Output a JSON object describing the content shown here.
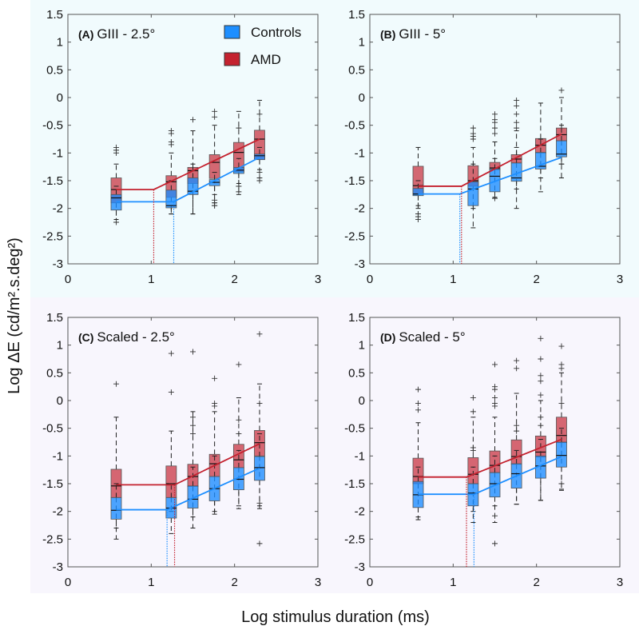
{
  "figure": {
    "ylabel": "Log ΔE (cd/m².s.deg²)",
    "xlabel": "Log stimulus duration (ms)",
    "legend": [
      {
        "name": "Controls",
        "color": "#1e8fff"
      },
      {
        "name": "AMD",
        "color": "#c4222f"
      }
    ],
    "colors": {
      "controls_line": "#1e8fff",
      "amd_line": "#c4222f",
      "top_band": "#f1fbfd",
      "bottom_band": "#f8f6fd"
    }
  },
  "chart_data": [
    {
      "type": "box",
      "panel": "(A)",
      "title": "GIII - 2.5°",
      "xlim": [
        0,
        3
      ],
      "ylim": [
        -3,
        1.5
      ],
      "xticks": [
        0,
        1,
        2,
        3
      ],
      "yticks": [
        1.5,
        1,
        0.5,
        0,
        -0.5,
        -1,
        -1.5,
        -2,
        -2.5,
        -3
      ],
      "ytick_labels": [
        "1.5",
        "1",
        "0.5",
        "0",
        "-0.5",
        "-1",
        "-1.5",
        "-2",
        "-2.5",
        "-3"
      ],
      "x": [
        0.58,
        1.24,
        1.5,
        1.76,
        2.05,
        2.3
      ],
      "box_format": [
        "whisker_low",
        "q1",
        "median",
        "q3",
        "whisker_high",
        "outliers"
      ],
      "series": [
        {
          "name": "Controls",
          "boxes": [
            [
              -2.2,
              -2.03,
              -1.81,
              -1.75,
              -1.6,
              [
                -2.25
              ]
            ],
            [
              -2.1,
              -1.99,
              -1.95,
              -1.67,
              -1.5,
              []
            ],
            [
              -2.1,
              -1.75,
              -1.69,
              -1.45,
              -1.2,
              []
            ],
            [
              -1.75,
              -1.59,
              -1.53,
              -1.48,
              -1.35,
              [
                -1.9,
                -1.95
              ]
            ],
            [
              -1.55,
              -1.37,
              -1.31,
              -1.26,
              -1.1,
              [
                -1.7,
                -1.6
              ]
            ],
            [
              -1.3,
              -1.12,
              -1.05,
              -1.02,
              -0.9,
              [
                -1.45,
                -1.5
              ]
            ]
          ],
          "fit": {
            "plateau": -1.88,
            "knee": 1.27,
            "end_x": 2.3,
            "end_y": -1.08
          }
        },
        {
          "name": "AMD",
          "boxes": [
            [
              -2.2,
              -1.9,
              -1.66,
              -1.45,
              -1.2,
              [
                -0.9,
                -0.95,
                -1.0
              ]
            ],
            [
              -2.1,
              -1.8,
              -1.52,
              -1.41,
              -1.0,
              [
                -0.6,
                -0.65,
                -0.8,
                -0.85
              ]
            ],
            [
              -2.1,
              -1.55,
              -1.32,
              -1.26,
              -0.6,
              [
                -0.4
              ]
            ],
            [
              -1.9,
              -1.46,
              -1.17,
              -1.03,
              -0.5,
              [
                -0.25,
                -0.35,
                -1.85,
                -1.95
              ]
            ],
            [
              -1.75,
              -1.34,
              -0.99,
              -0.81,
              -0.25,
              [
                -0.55,
                -1.6
              ]
            ],
            [
              -1.45,
              -1.12,
              -0.75,
              -0.59,
              -0.05,
              [
                -0.3,
                -1.35
              ]
            ]
          ],
          "fit": {
            "plateau": -1.66,
            "knee": 1.03,
            "end_x": 2.3,
            "end_y": -0.75
          }
        }
      ]
    },
    {
      "type": "box",
      "panel": "(B)",
      "title": "GIII - 5°",
      "xlim": [
        0,
        3
      ],
      "ylim": [
        -3,
        1.5
      ],
      "xticks": [
        0,
        1,
        2,
        3
      ],
      "yticks": [
        1.5,
        1,
        0.5,
        0,
        -0.5,
        -1,
        -1.5,
        -2,
        -2.5,
        -3
      ],
      "ytick_labels": [
        "1.5",
        "1",
        "0.5",
        "0",
        "-0.5",
        "-1",
        "-1.5",
        "-2",
        "-2.5",
        "-3"
      ],
      "x": [
        0.58,
        1.24,
        1.5,
        1.76,
        2.05,
        2.3
      ],
      "box_format": [
        "whisker_low",
        "q1",
        "median",
        "q3",
        "whisker_high",
        "outliers"
      ],
      "series": [
        {
          "name": "Controls",
          "boxes": [
            [
              -2.0,
              -1.77,
              -1.74,
              -1.64,
              -1.5,
              [
                -2.1,
                -2.15,
                -2.2
              ]
            ],
            [
              -2.35,
              -1.95,
              -1.65,
              -1.52,
              -1.2,
              []
            ],
            [
              -1.8,
              -1.7,
              -1.42,
              -1.29,
              -1.1,
              [
                -1.82
              ]
            ],
            [
              -2.0,
              -1.51,
              -1.45,
              -1.18,
              -0.9,
              []
            ],
            [
              -1.7,
              -1.29,
              -1.24,
              -0.99,
              -0.75,
              []
            ],
            [
              -1.45,
              -1.07,
              -1.02,
              -0.78,
              -0.5,
              [
                -1.2
              ]
            ]
          ],
          "fit": {
            "plateau": -1.74,
            "knee": 1.08,
            "end_x": 2.3,
            "end_y": -1.08
          }
        },
        {
          "name": "AMD",
          "boxes": [
            [
              -1.95,
              -1.75,
              -1.59,
              -1.24,
              -0.9,
              [
                -2.1,
                -2.15
              ]
            ],
            [
              -2.0,
              -1.6,
              -1.5,
              -1.23,
              -0.9,
              [
                -0.55,
                -0.65,
                -0.7,
                -0.75
              ]
            ],
            [
              -1.8,
              -1.3,
              -1.27,
              -1.17,
              -0.8,
              [
                -0.3,
                -0.4,
                -0.45,
                -0.55,
                -0.65
              ]
            ],
            [
              -1.65,
              -1.18,
              -1.11,
              -1.03,
              -0.6,
              [
                -0.05,
                -0.15,
                -0.3,
                -0.45,
                -0.55
              ]
            ],
            [
              -1.45,
              -1.0,
              -0.86,
              -0.74,
              -0.1,
              []
            ],
            [
              -1.2,
              -0.78,
              -0.67,
              -0.55,
              0.0,
              [
                0.13
              ]
            ]
          ],
          "fit": {
            "plateau": -1.6,
            "knee": 1.1,
            "end_x": 2.3,
            "end_y": -0.66
          }
        }
      ]
    },
    {
      "type": "box",
      "panel": "(C)",
      "title": "Scaled - 2.5°",
      "xlim": [
        0,
        3
      ],
      "ylim": [
        -3,
        1.5
      ],
      "xticks": [
        0,
        1,
        2,
        3
      ],
      "yticks": [
        1.5,
        1,
        0.5,
        0,
        -0.5,
        -1,
        -1.5,
        -2,
        -2.5,
        -3
      ],
      "ytick_labels": [
        "1.5",
        "1",
        "0.5",
        "0",
        "-0.5",
        "-1",
        "-1.5",
        "-2",
        "-2.5",
        "-3"
      ],
      "x": [
        0.58,
        1.24,
        1.5,
        1.76,
        2.05,
        2.3
      ],
      "box_format": [
        "whisker_low",
        "q1",
        "median",
        "q3",
        "whisker_high",
        "outliers"
      ],
      "series": [
        {
          "name": "Controls",
          "boxes": [
            [
              -2.5,
              -2.14,
              -1.98,
              -1.75,
              -1.5,
              []
            ],
            [
              -2.4,
              -2.12,
              -1.94,
              -1.75,
              -1.5,
              []
            ],
            [
              -2.3,
              -1.94,
              -1.78,
              -1.54,
              -1.2,
              []
            ],
            [
              -2.05,
              -1.81,
              -1.59,
              -1.37,
              -1.0,
              []
            ],
            [
              -1.9,
              -1.61,
              -1.42,
              -1.21,
              -0.9,
              []
            ],
            [
              -1.9,
              -1.44,
              -1.21,
              -1.01,
              -0.6,
              [
                -2.58
              ]
            ]
          ],
          "fit": {
            "plateau": -1.97,
            "knee": 1.19,
            "end_x": 2.3,
            "end_y": -1.22
          }
        },
        {
          "name": "AMD",
          "boxes": [
            [
              -2.3,
              -1.75,
              -1.54,
              -1.24,
              -0.3,
              [
                0.3
              ]
            ],
            [
              -2.0,
              -1.75,
              -1.5,
              -1.18,
              -0.55,
              [
                0.85,
                0.15
              ]
            ],
            [
              -2.1,
              -1.55,
              -1.37,
              -1.15,
              -0.2,
              [
                0.88,
                -0.3,
                -0.45,
                -0.6
              ]
            ],
            [
              -2.0,
              -1.37,
              -1.14,
              -0.97,
              -0.2,
              [
                0.4,
                -0.05,
                -0.1
              ]
            ],
            [
              -1.95,
              -1.21,
              -1.07,
              -0.79,
              0.05,
              [
                0.65,
                -0.35,
                -0.6
              ]
            ],
            [
              -1.95,
              -1.0,
              -0.76,
              -0.54,
              0.3,
              [
                1.2,
                -0.05,
                -1.85
              ]
            ]
          ],
          "fit": {
            "plateau": -1.52,
            "knee": 1.28,
            "end_x": 2.3,
            "end_y": -0.78
          }
        }
      ]
    },
    {
      "type": "box",
      "panel": "(D)",
      "title": "Scaled - 5°",
      "xlim": [
        0,
        3
      ],
      "ylim": [
        -3,
        1.5
      ],
      "xticks": [
        0,
        1,
        2,
        3
      ],
      "yticks": [
        1.5,
        1,
        0.5,
        0,
        -0.5,
        -1,
        -1.5,
        -2,
        -2.5,
        -3
      ],
      "ytick_labels": [
        "1.5",
        "1",
        "0.5",
        "0",
        "-0.5",
        "-1",
        "-1.5",
        "-2",
        "-2.5",
        "-3"
      ],
      "x": [
        0.58,
        1.24,
        1.5,
        1.76,
        2.05,
        2.3
      ],
      "box_format": [
        "whisker_low",
        "q1",
        "median",
        "q3",
        "whisker_high",
        "outliers"
      ],
      "series": [
        {
          "name": "Controls",
          "boxes": [
            [
              -2.15,
              -1.93,
              -1.7,
              -1.46,
              -1.2,
              []
            ],
            [
              -2.2,
              -1.9,
              -1.67,
              -1.5,
              -1.2,
              []
            ],
            [
              -2.2,
              -1.74,
              -1.5,
              -1.3,
              -1.0,
              [
                -2.08,
                -2.58
              ]
            ],
            [
              -1.87,
              -1.58,
              -1.32,
              -1.14,
              -0.9,
              []
            ],
            [
              -1.8,
              -1.4,
              -1.18,
              -1.0,
              -0.7,
              []
            ],
            [
              -1.62,
              -1.2,
              -0.99,
              -0.75,
              -0.5,
              [
                -1.5
              ]
            ]
          ],
          "fit": {
            "plateau": -1.69,
            "knee": 1.25,
            "end_x": 2.3,
            "end_y": -1.01
          }
        },
        {
          "name": "AMD",
          "boxes": [
            [
              -2.1,
              -1.5,
              -1.37,
              -1.04,
              -0.4,
              [
                0.2,
                -0.05,
                -0.17
              ]
            ],
            [
              -2.0,
              -1.5,
              -1.33,
              -1.03,
              -0.3,
              [
                0.05,
                -0.2,
                -0.85,
                -0.9
              ]
            ],
            [
              -1.9,
              -1.3,
              -1.17,
              -0.91,
              -0.3,
              [
                0.65,
                0.25,
                0.2,
                0.05,
                -0.05,
                -0.1
              ]
            ],
            [
              -1.87,
              -1.15,
              -1.01,
              -0.71,
              0.13,
              [
                0.72,
                0.58,
                -0.45,
                -0.55
              ]
            ],
            [
              -1.8,
              -1.02,
              -0.93,
              -0.64,
              0.0,
              [
                1.12,
                0.75,
                0.45,
                0.35,
                0.1,
                -0.3,
                -0.45
              ]
            ],
            [
              -1.6,
              -0.76,
              -0.63,
              -0.3,
              0.5,
              [
                0.98,
                0.65,
                0.58,
                -0.05
              ]
            ]
          ],
          "fit": {
            "plateau": -1.38,
            "knee": 1.16,
            "end_x": 2.3,
            "end_y": -0.7
          }
        }
      ]
    }
  ]
}
